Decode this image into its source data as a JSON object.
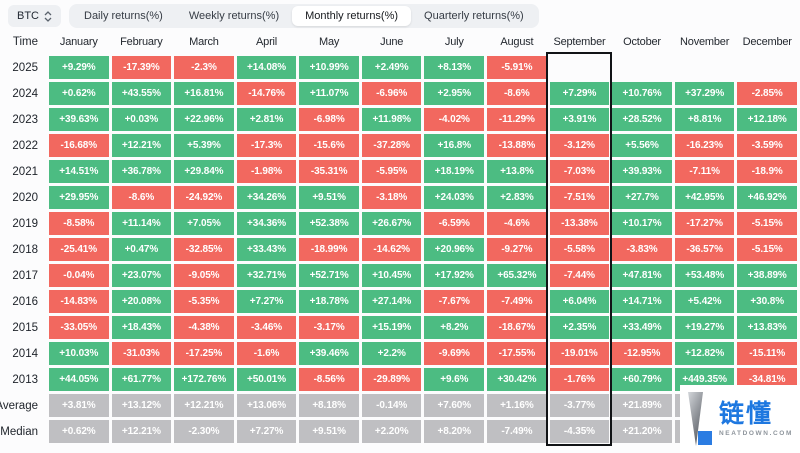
{
  "controls": {
    "symbol_selector": {
      "label": "BTC"
    },
    "tabs": [
      {
        "label": "Daily returns(%)",
        "active": false
      },
      {
        "label": "Weekly returns(%)",
        "active": false
      },
      {
        "label": "Monthly returns(%)",
        "active": true
      },
      {
        "label": "Quarterly returns(%)",
        "active": false
      }
    ]
  },
  "watermark": {
    "brand": "链懂",
    "domain": "NEATDOWN.COM"
  },
  "colors": {
    "positive": "#4CBC82",
    "negative": "#F2685F",
    "summary": "#BFBFC2",
    "highlight_border": "#111316",
    "brand_blue": "#1E78E0"
  },
  "chart_data": {
    "type": "heatmap",
    "title": "BTC Monthly returns(%)",
    "corner_label": "Time",
    "columns": [
      "January",
      "February",
      "March",
      "April",
      "May",
      "June",
      "July",
      "August",
      "September",
      "October",
      "November",
      "December"
    ],
    "highlighted_column": "September",
    "legend": "green = positive monthly return, red = negative, gray = summary rows; empty = no data yet",
    "rows": [
      {
        "label": "2025",
        "summary": false,
        "values": [
          "+9.29%",
          "-17.39%",
          "-2.3%",
          "+14.08%",
          "+10.99%",
          "+2.49%",
          "+8.13%",
          "-5.91%",
          null,
          null,
          null,
          null
        ]
      },
      {
        "label": "2024",
        "summary": false,
        "values": [
          "+0.62%",
          "+43.55%",
          "+16.81%",
          "-14.76%",
          "+11.07%",
          "-6.96%",
          "+2.95%",
          "-8.6%",
          "+7.29%",
          "+10.76%",
          "+37.29%",
          "-2.85%"
        ]
      },
      {
        "label": "2023",
        "summary": false,
        "values": [
          "+39.63%",
          "+0.03%",
          "+22.96%",
          "+2.81%",
          "-6.98%",
          "+11.98%",
          "-4.02%",
          "-11.29%",
          "+3.91%",
          "+28.52%",
          "+8.81%",
          "+12.18%"
        ]
      },
      {
        "label": "2022",
        "summary": false,
        "values": [
          "-16.68%",
          "+12.21%",
          "+5.39%",
          "-17.3%",
          "-15.6%",
          "-37.28%",
          "+16.8%",
          "-13.88%",
          "-3.12%",
          "+5.56%",
          "-16.23%",
          "-3.59%"
        ]
      },
      {
        "label": "2021",
        "summary": false,
        "values": [
          "+14.51%",
          "+36.78%",
          "+29.84%",
          "-1.98%",
          "-35.31%",
          "-5.95%",
          "+18.19%",
          "+13.8%",
          "-7.03%",
          "+39.93%",
          "-7.11%",
          "-18.9%"
        ]
      },
      {
        "label": "2020",
        "summary": false,
        "values": [
          "+29.95%",
          "-8.6%",
          "-24.92%",
          "+34.26%",
          "+9.51%",
          "-3.18%",
          "+24.03%",
          "+2.83%",
          "-7.51%",
          "+27.7%",
          "+42.95%",
          "+46.92%"
        ]
      },
      {
        "label": "2019",
        "summary": false,
        "values": [
          "-8.58%",
          "+11.14%",
          "+7.05%",
          "+34.36%",
          "+52.38%",
          "+26.67%",
          "-6.59%",
          "-4.6%",
          "-13.38%",
          "+10.17%",
          "-17.27%",
          "-5.15%"
        ]
      },
      {
        "label": "2018",
        "summary": false,
        "values": [
          "-25.41%",
          "+0.47%",
          "-32.85%",
          "+33.43%",
          "-18.99%",
          "-14.62%",
          "+20.96%",
          "-9.27%",
          "-5.58%",
          "-3.83%",
          "-36.57%",
          "-5.15%"
        ]
      },
      {
        "label": "2017",
        "summary": false,
        "values": [
          "-0.04%",
          "+23.07%",
          "-9.05%",
          "+32.71%",
          "+52.71%",
          "+10.45%",
          "+17.92%",
          "+65.32%",
          "-7.44%",
          "+47.81%",
          "+53.48%",
          "+38.89%"
        ]
      },
      {
        "label": "2016",
        "summary": false,
        "values": [
          "-14.83%",
          "+20.08%",
          "-5.35%",
          "+7.27%",
          "+18.78%",
          "+27.14%",
          "-7.67%",
          "-7.49%",
          "+6.04%",
          "+14.71%",
          "+5.42%",
          "+30.8%"
        ]
      },
      {
        "label": "2015",
        "summary": false,
        "values": [
          "-33.05%",
          "+18.43%",
          "-4.38%",
          "-3.46%",
          "-3.17%",
          "+15.19%",
          "+8.2%",
          "-18.67%",
          "+2.35%",
          "+33.49%",
          "+19.27%",
          "+13.83%"
        ]
      },
      {
        "label": "2014",
        "summary": false,
        "values": [
          "+10.03%",
          "-31.03%",
          "-17.25%",
          "-1.6%",
          "+39.46%",
          "+2.2%",
          "-9.69%",
          "-17.55%",
          "-19.01%",
          "-12.95%",
          "+12.82%",
          "-15.11%"
        ]
      },
      {
        "label": "2013",
        "summary": false,
        "values": [
          "+44.05%",
          "+61.77%",
          "+172.76%",
          "+50.01%",
          "-8.56%",
          "-29.89%",
          "+9.6%",
          "+30.42%",
          "-1.76%",
          "+60.79%",
          "+449.35%",
          "-34.81%"
        ]
      },
      {
        "label": "Average",
        "summary": true,
        "values": [
          "+3.81%",
          "+13.12%",
          "+12.21%",
          "+13.06%",
          "+8.18%",
          "-0.14%",
          "+7.60%",
          "+1.16%",
          "-3.77%",
          "+21.89%",
          "",
          ""
        ]
      },
      {
        "label": "Median",
        "summary": true,
        "values": [
          "+0.62%",
          "+12.21%",
          "-2.30%",
          "+7.27%",
          "+9.51%",
          "+2.20%",
          "+8.20%",
          "-7.49%",
          "-4.35%",
          "+21.20%",
          "",
          ""
        ]
      }
    ]
  }
}
